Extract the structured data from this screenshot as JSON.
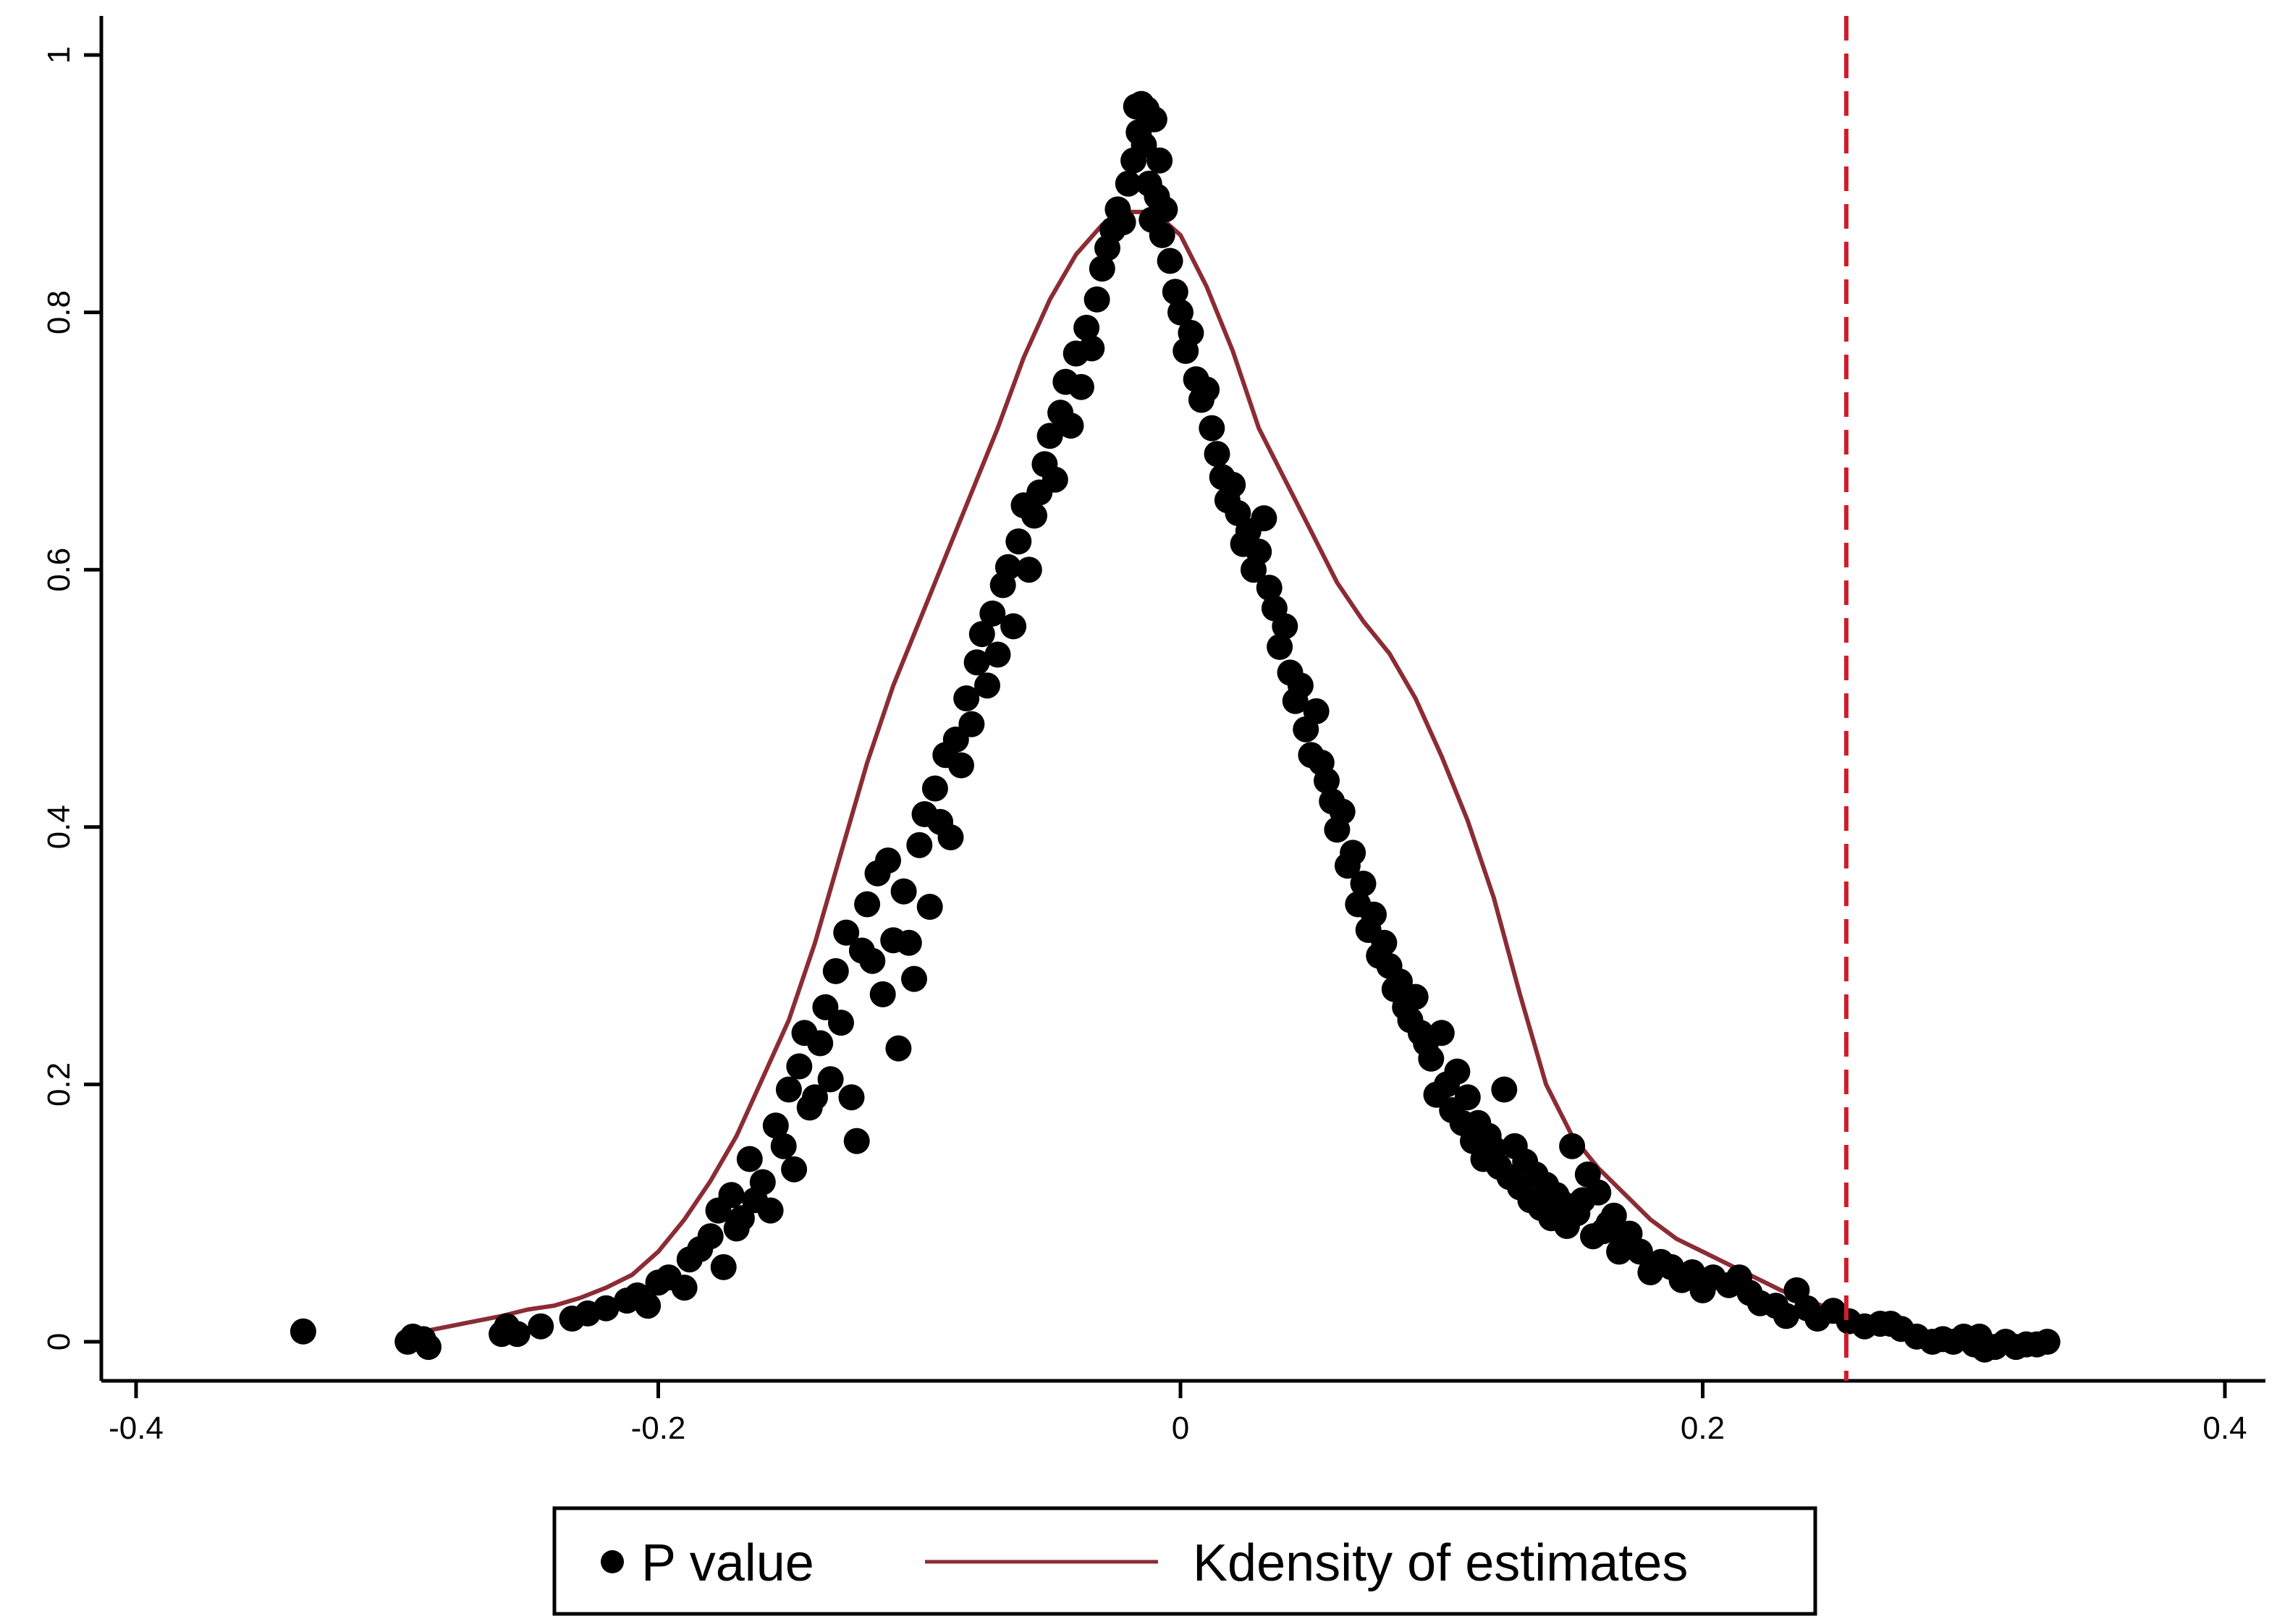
{
  "chart_data": {
    "type": "scatter",
    "title": "",
    "xlabel": "",
    "ylabel": "",
    "xlim": [
      -0.4,
      0.4
    ],
    "ylim": [
      0,
      1
    ],
    "x_ticks": [
      -0.4,
      -0.2,
      0,
      0.2,
      0.4
    ],
    "x_tick_labels": [
      "-0.4",
      "-0.2",
      "0",
      "0.2",
      "0.4"
    ],
    "y_ticks": [
      0,
      0.2,
      0.4,
      0.6,
      0.8,
      1
    ],
    "y_tick_labels": [
      "0",
      "0.2",
      "0.4",
      "0.6",
      "0.8",
      "1"
    ],
    "grid": false,
    "legend_position": "bottom",
    "reference_line": {
      "x": 0.255,
      "style": "dashed",
      "color": "#d01c2b"
    },
    "series": [
      {
        "name": "P value",
        "kind": "scatter",
        "color": "#000000",
        "points": [
          [
            -0.336,
            0.008
          ],
          [
            -0.296,
            0.0
          ],
          [
            -0.294,
            0.004
          ],
          [
            -0.29,
            0.002
          ],
          [
            -0.288,
            -0.004
          ],
          [
            -0.26,
            0.006
          ],
          [
            -0.258,
            0.012
          ],
          [
            -0.254,
            0.006
          ],
          [
            -0.245,
            0.012
          ],
          [
            -0.233,
            0.018
          ],
          [
            -0.227,
            0.022
          ],
          [
            -0.22,
            0.026
          ],
          [
            -0.212,
            0.032
          ],
          [
            -0.208,
            0.036
          ],
          [
            -0.204,
            0.028
          ],
          [
            -0.2,
            0.046
          ],
          [
            -0.196,
            0.05
          ],
          [
            -0.19,
            0.042
          ],
          [
            -0.188,
            0.064
          ],
          [
            -0.184,
            0.072
          ],
          [
            -0.18,
            0.082
          ],
          [
            -0.177,
            0.102
          ],
          [
            -0.175,
            0.058
          ],
          [
            -0.172,
            0.114
          ],
          [
            -0.17,
            0.088
          ],
          [
            -0.168,
            0.096
          ],
          [
            -0.165,
            0.142
          ],
          [
            -0.163,
            0.11
          ],
          [
            -0.16,
            0.124
          ],
          [
            -0.157,
            0.102
          ],
          [
            -0.155,
            0.168
          ],
          [
            -0.152,
            0.152
          ],
          [
            -0.15,
            0.196
          ],
          [
            -0.148,
            0.134
          ],
          [
            -0.146,
            0.214
          ],
          [
            -0.144,
            0.24
          ],
          [
            -0.142,
            0.182
          ],
          [
            -0.14,
            0.19
          ],
          [
            -0.138,
            0.232
          ],
          [
            -0.136,
            0.26
          ],
          [
            -0.134,
            0.204
          ],
          [
            -0.132,
            0.288
          ],
          [
            -0.13,
            0.248
          ],
          [
            -0.128,
            0.318
          ],
          [
            -0.126,
            0.19
          ],
          [
            -0.124,
            0.156
          ],
          [
            -0.122,
            0.304
          ],
          [
            -0.12,
            0.34
          ],
          [
            -0.118,
            0.296
          ],
          [
            -0.116,
            0.364
          ],
          [
            -0.114,
            0.27
          ],
          [
            -0.112,
            0.374
          ],
          [
            -0.11,
            0.312
          ],
          [
            -0.108,
            0.228
          ],
          [
            -0.106,
            0.35
          ],
          [
            -0.104,
            0.31
          ],
          [
            -0.102,
            0.282
          ],
          [
            -0.1,
            0.386
          ],
          [
            -0.098,
            0.41
          ],
          [
            -0.096,
            0.338
          ],
          [
            -0.094,
            0.43
          ],
          [
            -0.092,
            0.404
          ],
          [
            -0.09,
            0.456
          ],
          [
            -0.088,
            0.392
          ],
          [
            -0.086,
            0.468
          ],
          [
            -0.084,
            0.448
          ],
          [
            -0.082,
            0.5
          ],
          [
            -0.08,
            0.48
          ],
          [
            -0.078,
            0.528
          ],
          [
            -0.076,
            0.55
          ],
          [
            -0.074,
            0.51
          ],
          [
            -0.072,
            0.566
          ],
          [
            -0.07,
            0.534
          ],
          [
            -0.068,
            0.588
          ],
          [
            -0.066,
            0.602
          ],
          [
            -0.064,
            0.556
          ],
          [
            -0.062,
            0.622
          ],
          [
            -0.06,
            0.65
          ],
          [
            -0.058,
            0.6
          ],
          [
            -0.056,
            0.642
          ],
          [
            -0.054,
            0.66
          ],
          [
            -0.052,
            0.682
          ],
          [
            -0.05,
            0.704
          ],
          [
            -0.048,
            0.67
          ],
          [
            -0.046,
            0.722
          ],
          [
            -0.044,
            0.746
          ],
          [
            -0.042,
            0.712
          ],
          [
            -0.04,
            0.768
          ],
          [
            -0.038,
            0.742
          ],
          [
            -0.036,
            0.788
          ],
          [
            -0.034,
            0.772
          ],
          [
            -0.032,
            0.81
          ],
          [
            -0.03,
            0.834
          ],
          [
            -0.028,
            0.85
          ],
          [
            -0.026,
            0.864
          ],
          [
            -0.024,
            0.88
          ],
          [
            -0.022,
            0.87
          ],
          [
            -0.02,
            0.9
          ],
          [
            -0.018,
            0.918
          ],
          [
            -0.017,
            0.96
          ],
          [
            -0.016,
            0.94
          ],
          [
            -0.015,
            0.962
          ],
          [
            -0.014,
            0.93
          ],
          [
            -0.013,
            0.958
          ],
          [
            -0.012,
            0.9
          ],
          [
            -0.011,
            0.872
          ],
          [
            -0.01,
            0.95
          ],
          [
            -0.009,
            0.89
          ],
          [
            -0.008,
            0.918
          ],
          [
            -0.007,
            0.86
          ],
          [
            -0.006,
            0.88
          ],
          [
            -0.004,
            0.84
          ],
          [
            -0.002,
            0.816
          ],
          [
            0.0,
            0.8
          ],
          [
            0.002,
            0.77
          ],
          [
            0.004,
            0.784
          ],
          [
            0.006,
            0.748
          ],
          [
            0.008,
            0.732
          ],
          [
            0.01,
            0.74
          ],
          [
            0.012,
            0.71
          ],
          [
            0.014,
            0.69
          ],
          [
            0.016,
            0.672
          ],
          [
            0.018,
            0.654
          ],
          [
            0.02,
            0.666
          ],
          [
            0.022,
            0.644
          ],
          [
            0.024,
            0.62
          ],
          [
            0.026,
            0.63
          ],
          [
            0.028,
            0.6
          ],
          [
            0.03,
            0.614
          ],
          [
            0.032,
            0.64
          ],
          [
            0.034,
            0.586
          ],
          [
            0.036,
            0.57
          ],
          [
            0.038,
            0.54
          ],
          [
            0.04,
            0.556
          ],
          [
            0.042,
            0.52
          ],
          [
            0.044,
            0.498
          ],
          [
            0.046,
            0.51
          ],
          [
            0.048,
            0.476
          ],
          [
            0.05,
            0.456
          ],
          [
            0.052,
            0.49
          ],
          [
            0.054,
            0.45
          ],
          [
            0.056,
            0.436
          ],
          [
            0.058,
            0.42
          ],
          [
            0.06,
            0.398
          ],
          [
            0.062,
            0.412
          ],
          [
            0.064,
            0.37
          ],
          [
            0.066,
            0.38
          ],
          [
            0.068,
            0.34
          ],
          [
            0.07,
            0.356
          ],
          [
            0.072,
            0.32
          ],
          [
            0.074,
            0.332
          ],
          [
            0.076,
            0.3
          ],
          [
            0.078,
            0.31
          ],
          [
            0.08,
            0.292
          ],
          [
            0.082,
            0.274
          ],
          [
            0.084,
            0.28
          ],
          [
            0.086,
            0.26
          ],
          [
            0.088,
            0.25
          ],
          [
            0.09,
            0.268
          ],
          [
            0.092,
            0.24
          ],
          [
            0.094,
            0.232
          ],
          [
            0.096,
            0.22
          ],
          [
            0.098,
            0.192
          ],
          [
            0.1,
            0.24
          ],
          [
            0.102,
            0.2
          ],
          [
            0.104,
            0.18
          ],
          [
            0.106,
            0.21
          ],
          [
            0.108,
            0.17
          ],
          [
            0.11,
            0.19
          ],
          [
            0.112,
            0.156
          ],
          [
            0.114,
            0.17
          ],
          [
            0.116,
            0.142
          ],
          [
            0.118,
            0.16
          ],
          [
            0.12,
            0.15
          ],
          [
            0.122,
            0.136
          ],
          [
            0.124,
            0.196
          ],
          [
            0.126,
            0.128
          ],
          [
            0.128,
            0.152
          ],
          [
            0.13,
            0.12
          ],
          [
            0.132,
            0.14
          ],
          [
            0.134,
            0.11
          ],
          [
            0.136,
            0.13
          ],
          [
            0.138,
            0.104
          ],
          [
            0.14,
            0.122
          ],
          [
            0.142,
            0.096
          ],
          [
            0.144,
            0.114
          ],
          [
            0.146,
            0.108
          ],
          [
            0.148,
            0.09
          ],
          [
            0.15,
            0.152
          ],
          [
            0.152,
            0.1
          ],
          [
            0.154,
            0.11
          ],
          [
            0.156,
            0.13
          ],
          [
            0.158,
            0.082
          ],
          [
            0.16,
            0.116
          ],
          [
            0.162,
            0.086
          ],
          [
            0.164,
            0.092
          ],
          [
            0.166,
            0.098
          ],
          [
            0.168,
            0.07
          ],
          [
            0.17,
            0.08
          ],
          [
            0.172,
            0.084
          ],
          [
            0.176,
            0.07
          ],
          [
            0.18,
            0.054
          ],
          [
            0.184,
            0.062
          ],
          [
            0.188,
            0.058
          ],
          [
            0.192,
            0.048
          ],
          [
            0.196,
            0.054
          ],
          [
            0.2,
            0.04
          ],
          [
            0.204,
            0.05
          ],
          [
            0.21,
            0.044
          ],
          [
            0.214,
            0.05
          ],
          [
            0.218,
            0.038
          ],
          [
            0.222,
            0.03
          ],
          [
            0.228,
            0.028
          ],
          [
            0.232,
            0.02
          ],
          [
            0.236,
            0.04
          ],
          [
            0.24,
            0.026
          ],
          [
            0.244,
            0.018
          ],
          [
            0.25,
            0.024
          ],
          [
            0.256,
            0.016
          ],
          [
            0.262,
            0.012
          ],
          [
            0.268,
            0.014
          ],
          [
            0.272,
            0.014
          ],
          [
            0.276,
            0.01
          ],
          [
            0.282,
            0.004
          ],
          [
            0.288,
            0.0
          ],
          [
            0.292,
            0.002
          ],
          [
            0.296,
            0.0
          ],
          [
            0.3,
            0.004
          ],
          [
            0.304,
            -0.002
          ],
          [
            0.306,
            0.004
          ],
          [
            0.308,
            -0.006
          ],
          [
            0.312,
            -0.004
          ],
          [
            0.316,
            0.0
          ],
          [
            0.32,
            -0.004
          ],
          [
            0.324,
            -0.002
          ],
          [
            0.328,
            -0.002
          ],
          [
            0.332,
            0.0
          ]
        ]
      },
      {
        "name": "Kdensity of estimates",
        "kind": "line",
        "color": "#8b2c35",
        "points": [
          [
            -0.29,
            0.008
          ],
          [
            -0.275,
            0.014
          ],
          [
            -0.26,
            0.02
          ],
          [
            -0.25,
            0.025
          ],
          [
            -0.24,
            0.028
          ],
          [
            -0.23,
            0.034
          ],
          [
            -0.22,
            0.042
          ],
          [
            -0.21,
            0.052
          ],
          [
            -0.2,
            0.07
          ],
          [
            -0.19,
            0.095
          ],
          [
            -0.18,
            0.125
          ],
          [
            -0.17,
            0.16
          ],
          [
            -0.16,
            0.205
          ],
          [
            -0.15,
            0.25
          ],
          [
            -0.14,
            0.31
          ],
          [
            -0.13,
            0.38
          ],
          [
            -0.12,
            0.45
          ],
          [
            -0.11,
            0.51
          ],
          [
            -0.1,
            0.56
          ],
          [
            -0.09,
            0.61
          ],
          [
            -0.08,
            0.66
          ],
          [
            -0.07,
            0.71
          ],
          [
            -0.06,
            0.765
          ],
          [
            -0.05,
            0.81
          ],
          [
            -0.04,
            0.845
          ],
          [
            -0.03,
            0.868
          ],
          [
            -0.02,
            0.878
          ],
          [
            -0.01,
            0.878
          ],
          [
            0.0,
            0.86
          ],
          [
            0.01,
            0.82
          ],
          [
            0.02,
            0.77
          ],
          [
            0.03,
            0.71
          ],
          [
            0.04,
            0.67
          ],
          [
            0.05,
            0.63
          ],
          [
            0.06,
            0.59
          ],
          [
            0.07,
            0.56
          ],
          [
            0.08,
            0.535
          ],
          [
            0.09,
            0.5
          ],
          [
            0.1,
            0.455
          ],
          [
            0.11,
            0.405
          ],
          [
            0.12,
            0.345
          ],
          [
            0.13,
            0.27
          ],
          [
            0.14,
            0.2
          ],
          [
            0.15,
            0.16
          ],
          [
            0.16,
            0.135
          ],
          [
            0.17,
            0.115
          ],
          [
            0.18,
            0.095
          ],
          [
            0.19,
            0.08
          ],
          [
            0.2,
            0.07
          ],
          [
            0.21,
            0.06
          ],
          [
            0.22,
            0.05
          ],
          [
            0.23,
            0.04
          ],
          [
            0.24,
            0.032
          ],
          [
            0.25,
            0.025
          ],
          [
            0.26,
            0.015
          ],
          [
            0.265,
            0.013
          ]
        ]
      }
    ]
  }
}
